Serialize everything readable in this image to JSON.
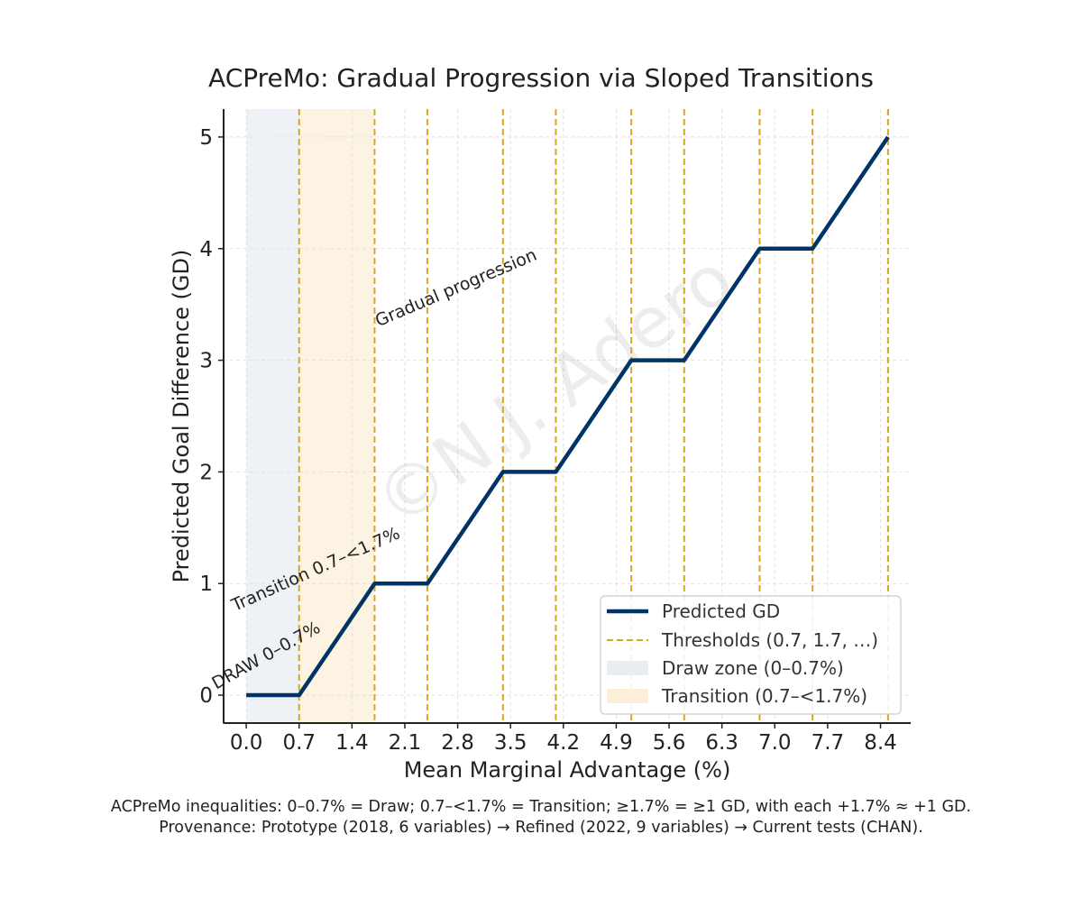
{
  "chart_data": {
    "type": "line",
    "title": "ACPreMo: Gradual Progression via Sloped Transitions",
    "xlabel": "Mean Marginal Advantage (%)",
    "ylabel": "Predicted Goal Difference (GD)",
    "xlim": [
      -0.3,
      8.8
    ],
    "ylim": [
      -0.25,
      5.25
    ],
    "x_ticks": [
      0.0,
      0.7,
      1.4,
      2.1,
      2.8,
      3.5,
      4.2,
      4.9,
      5.6,
      6.3,
      7.0,
      7.7,
      8.4
    ],
    "x_tick_labels": [
      "0.0",
      "0.7",
      "1.4",
      "2.1",
      "2.8",
      "3.5",
      "4.2",
      "4.9",
      "5.6",
      "6.3",
      "7.0",
      "7.7",
      "8.4"
    ],
    "y_ticks": [
      0,
      1,
      2,
      3,
      4,
      5
    ],
    "y_tick_labels": [
      "0",
      "1",
      "2",
      "3",
      "4",
      "5"
    ],
    "grid": true,
    "series": [
      {
        "name": "Predicted GD",
        "color": "#003366",
        "x": [
          0.0,
          0.7,
          1.7,
          2.4,
          3.4,
          4.1,
          5.1,
          5.8,
          6.8,
          7.5,
          8.5
        ],
        "y": [
          0,
          0,
          1,
          1,
          2,
          2,
          3,
          3,
          4,
          4,
          5
        ]
      }
    ],
    "thresholds": {
      "name": "Thresholds (0.7, 1.7, …)",
      "color": "#DAA520",
      "x": [
        0.7,
        1.7,
        2.4,
        3.4,
        4.1,
        5.1,
        5.8,
        6.8,
        7.5,
        8.5
      ]
    },
    "regions": [
      {
        "name": "Draw zone (0–0.7%)",
        "x0": 0.0,
        "x1": 0.7,
        "color": "#E3EAF0"
      },
      {
        "name": "Transition (0.7–<1.7%)",
        "x0": 0.7,
        "x1": 1.7,
        "color": "#FBEBD0"
      }
    ],
    "annotations": [
      {
        "text": "DRAW 0–0.7%",
        "x": -0.4,
        "y": 0.05,
        "angle": 29
      },
      {
        "text": "Transition 0.7–<1.7%",
        "x": -0.15,
        "y": 0.75,
        "angle": 24
      },
      {
        "text": "Gradual progression",
        "x": 1.75,
        "y": 3.3,
        "angle": 23
      }
    ],
    "legend_position": "bottom-right",
    "watermark": "©N.J. Adero"
  },
  "caption": {
    "line1": "ACPreMo inequalities: 0–0.7% = Draw; 0.7–<1.7% = Transition; ≥1.7% = ≥1 GD, with each +1.7% ≈ +1 GD.",
    "line2": "Provenance: Prototype (2018, 6 variables) → Refined (2022, 9 variables) → Current tests (CHAN)."
  }
}
